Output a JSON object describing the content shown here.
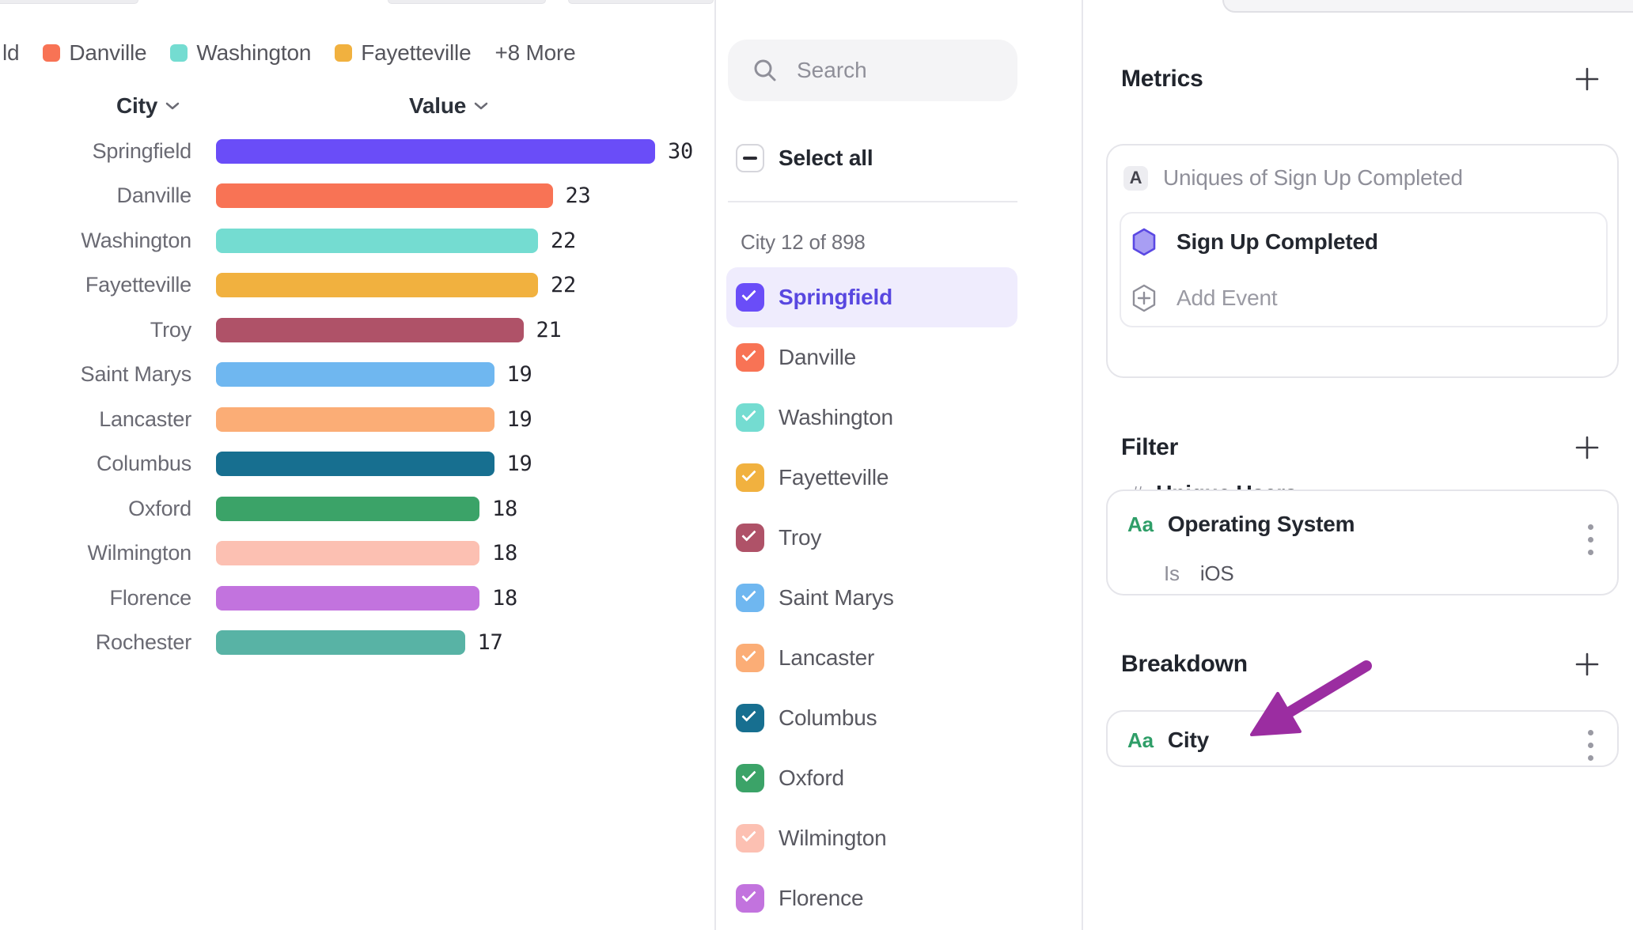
{
  "colors": {
    "accent_purple": "#6a4df8",
    "selected_row_bg": "#efecfd",
    "selected_text": "#5847e0",
    "divider": "#e7e7ec",
    "arrow_annotation": "#9b2da1",
    "aa_icon_green": "#2f9e68"
  },
  "legend": {
    "prefix_truncated": "ld",
    "items": [
      {
        "label": "Danville",
        "color": "#f87355"
      },
      {
        "label": "Washington",
        "color": "#74dcd1"
      },
      {
        "label": "Fayetteville",
        "color": "#f1b13f"
      }
    ],
    "more_label": "+8 More"
  },
  "chart": {
    "columns": [
      {
        "label": "City"
      },
      {
        "label": "Value"
      }
    ],
    "rows": [
      {
        "city": "Springfield",
        "value": 30,
        "color": "#6a4df8"
      },
      {
        "city": "Danville",
        "value": 23,
        "color": "#f87355"
      },
      {
        "city": "Washington",
        "value": 22,
        "color": "#74dcd1"
      },
      {
        "city": "Fayetteville",
        "value": 22,
        "color": "#f1b13f"
      },
      {
        "city": "Troy",
        "value": 21,
        "color": "#af5268"
      },
      {
        "city": "Saint Marys",
        "value": 19,
        "color": "#6fb7f0"
      },
      {
        "city": "Lancaster",
        "value": 19,
        "color": "#fbad76"
      },
      {
        "city": "Columbus",
        "value": 19,
        "color": "#176f90"
      },
      {
        "city": "Oxford",
        "value": 18,
        "color": "#3ba368"
      },
      {
        "city": "Wilmington",
        "value": 18,
        "color": "#fcc0b2"
      },
      {
        "city": "Florence",
        "value": 18,
        "color": "#c273de"
      },
      {
        "city": "Rochester",
        "value": 17,
        "color": "#58b3a5"
      }
    ]
  },
  "chart_data": {
    "type": "bar",
    "orientation": "horizontal",
    "categories": [
      "Springfield",
      "Danville",
      "Washington",
      "Fayetteville",
      "Troy",
      "Saint Marys",
      "Lancaster",
      "Columbus",
      "Oxford",
      "Wilmington",
      "Florence",
      "Rochester"
    ],
    "values": [
      30,
      23,
      22,
      22,
      21,
      19,
      19,
      19,
      18,
      18,
      18,
      17
    ],
    "title": "",
    "xlabel": "Value",
    "ylabel": "City",
    "xlim": [
      0,
      30
    ],
    "grid": false,
    "legend_position": "top"
  },
  "city_list": {
    "search_placeholder": "Search",
    "select_all_label": "Select all",
    "select_all_state": "indeterminate",
    "count_label": "City 12 of 898",
    "items": [
      {
        "label": "Springfield",
        "color": "#6a4df8",
        "checked": true,
        "selected": true
      },
      {
        "label": "Danville",
        "color": "#f87355",
        "checked": true,
        "selected": false
      },
      {
        "label": "Washington",
        "color": "#74dcd1",
        "checked": true,
        "selected": false
      },
      {
        "label": "Fayetteville",
        "color": "#f1b13f",
        "checked": true,
        "selected": false
      },
      {
        "label": "Troy",
        "color": "#af5268",
        "checked": true,
        "selected": false
      },
      {
        "label": "Saint Marys",
        "color": "#6fb7f0",
        "checked": true,
        "selected": false
      },
      {
        "label": "Lancaster",
        "color": "#fbad76",
        "checked": true,
        "selected": false
      },
      {
        "label": "Columbus",
        "color": "#176f90",
        "checked": true,
        "selected": false
      },
      {
        "label": "Oxford",
        "color": "#3ba368",
        "checked": true,
        "selected": false
      },
      {
        "label": "Wilmington",
        "color": "#fcc0b2",
        "checked": true,
        "selected": false
      },
      {
        "label": "Florence",
        "color": "#c273de",
        "checked": true,
        "selected": false
      }
    ]
  },
  "inspector": {
    "metrics": {
      "title": "Metrics",
      "badge": "A",
      "summary": "Uniques of Sign Up Completed",
      "event_name": "Sign Up Completed",
      "add_event_label": "Add Event",
      "measure_prefix": "#",
      "measure_label": "Unique Users"
    },
    "filter": {
      "title": "Filter",
      "icon_label": "Aa",
      "property": "Operating System",
      "operator": "Is",
      "value": "iOS"
    },
    "breakdown": {
      "title": "Breakdown",
      "icon_label": "Aa",
      "property": "City"
    }
  }
}
